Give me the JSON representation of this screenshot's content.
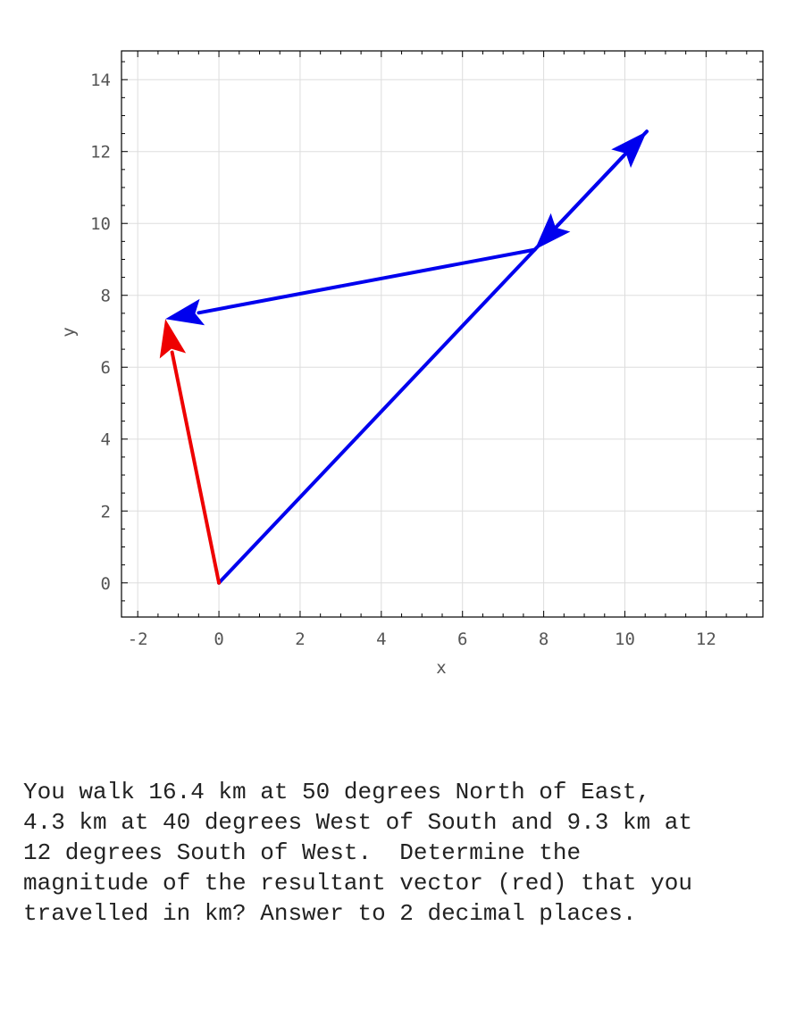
{
  "chart_data": {
    "type": "vector",
    "xlabel": "x",
    "ylabel": "y",
    "xlim": [
      -2.4,
      13.4
    ],
    "ylim": [
      -0.95,
      14.8
    ],
    "xticks": [
      -2,
      0,
      2,
      4,
      6,
      8,
      10,
      12
    ],
    "yticks": [
      0,
      2,
      4,
      6,
      8,
      10,
      12,
      14
    ],
    "grid": true,
    "vectors": [
      {
        "from": [
          0,
          0
        ],
        "to": [
          10.54,
          12.56
        ],
        "color": "#0000ee",
        "label": "16.4 km at 50 degrees North of East"
      },
      {
        "from": [
          10.54,
          12.56
        ],
        "to": [
          7.78,
          9.27
        ],
        "color": "#0000ee",
        "label": "4.3 km at 40 degrees West of South"
      },
      {
        "from": [
          7.78,
          9.27
        ],
        "to": [
          -1.32,
          7.34
        ],
        "color": "#0000ee",
        "label": "9.3 km at 12 degrees South of West"
      },
      {
        "from": [
          0,
          0
        ],
        "to": [
          -1.32,
          7.34
        ],
        "color": "#ee0000",
        "label": "resultant"
      }
    ]
  },
  "question": {
    "text": "You walk 16.4 km at 50 degrees North of East,\n4.3 km at 40 degrees West of South and 9.3 km at\n12 degrees South of West.  Determine the\nmagnitude of the resultant vector (red) that you\ntravelled in km? Answer to 2 decimal places."
  }
}
